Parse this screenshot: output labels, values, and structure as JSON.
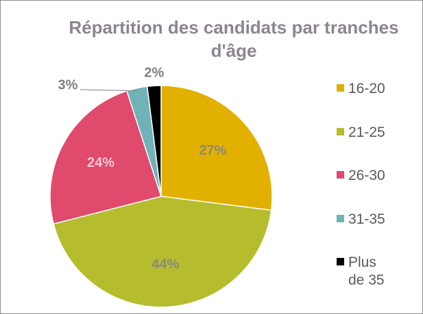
{
  "chart_data": {
    "type": "pie",
    "title": "Répartition des candidats par tranches d'âge",
    "categories": [
      "16-20",
      "21-25",
      "26-30",
      "31-35",
      "Plus de 35"
    ],
    "values": [
      27,
      44,
      24,
      3,
      2
    ],
    "value_labels": [
      "27%",
      "44%",
      "24%",
      "3%",
      "2%"
    ],
    "colors": [
      "#e2b000",
      "#b5bd2e",
      "#e04a6c",
      "#6fb3b8",
      "#000000"
    ],
    "legend": "right"
  }
}
